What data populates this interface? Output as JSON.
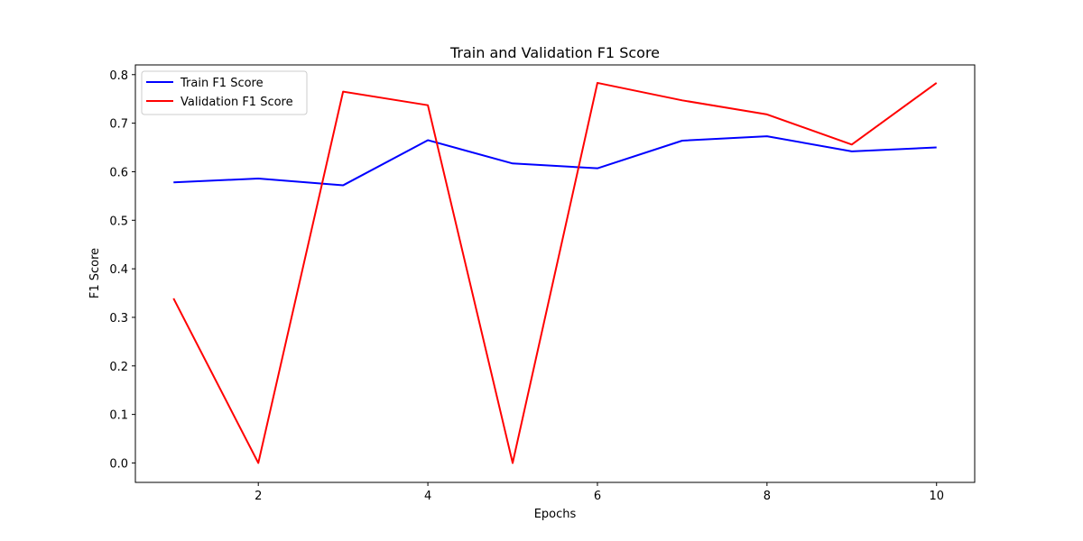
{
  "chart_data": {
    "type": "line",
    "title": "Train and Validation F1 Score",
    "xlabel": "Epochs",
    "ylabel": "F1 Score",
    "x": [
      1,
      2,
      3,
      4,
      5,
      6,
      7,
      8,
      9,
      10
    ],
    "xlim": [
      0.55,
      10.45
    ],
    "ylim": [
      -0.04,
      0.82
    ],
    "xticks": [
      2,
      4,
      6,
      8,
      10
    ],
    "yticks": [
      0.0,
      0.1,
      0.2,
      0.3,
      0.4,
      0.5,
      0.6,
      0.7,
      0.8
    ],
    "grid": false,
    "legend_position": "top-left",
    "series": [
      {
        "name": "Train F1 Score",
        "color": "#0000ff",
        "values": [
          0.578,
          0.586,
          0.572,
          0.665,
          0.617,
          0.607,
          0.664,
          0.673,
          0.642,
          0.65
        ]
      },
      {
        "name": "Validation F1 Score",
        "color": "#ff0000",
        "values": [
          0.339,
          0.0,
          0.765,
          0.737,
          0.0,
          0.783,
          0.747,
          0.718,
          0.656,
          0.783
        ]
      }
    ]
  }
}
